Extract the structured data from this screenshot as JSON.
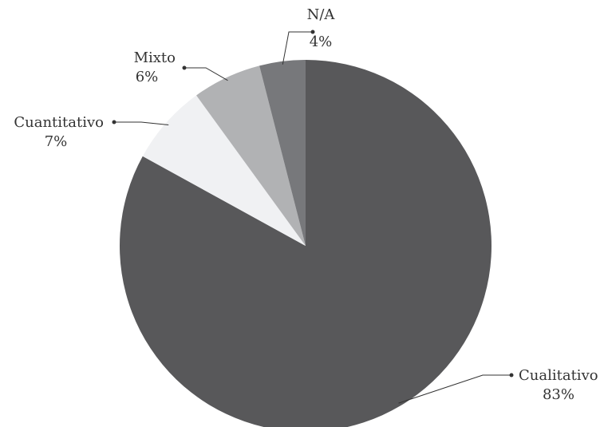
{
  "chart_data": {
    "type": "pie",
    "categories": [
      "Cualitativo",
      "Cuantitativo",
      "Mixto",
      "N/A"
    ],
    "values": [
      83,
      7,
      6,
      4
    ],
    "value_labels": [
      "83%",
      "7%",
      "6%",
      "4%"
    ],
    "colors": [
      "#58585a",
      "#f0f1f3",
      "#b1b2b4",
      "#77787b"
    ]
  }
}
